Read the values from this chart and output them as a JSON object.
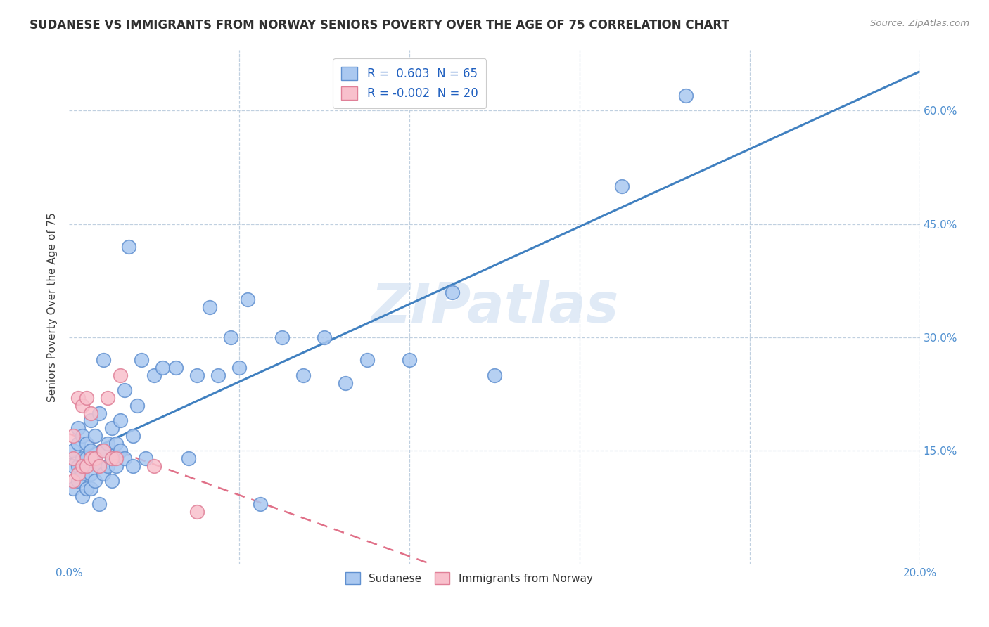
{
  "title": "SUDANESE VS IMMIGRANTS FROM NORWAY SENIORS POVERTY OVER THE AGE OF 75 CORRELATION CHART",
  "source": "Source: ZipAtlas.com",
  "ylabel": "Seniors Poverty Over the Age of 75",
  "xlim": [
    0.0,
    0.2
  ],
  "ylim": [
    0.0,
    0.68
  ],
  "legend_blue_label": "R =  0.603  N = 65",
  "legend_pink_label": "R = -0.002  N = 20",
  "blue_color": "#aac8f0",
  "blue_edge_color": "#6090d0",
  "pink_color": "#f8c0cc",
  "pink_edge_color": "#e08098",
  "line_blue_color": "#4080c0",
  "line_pink_color": "#e07088",
  "watermark": "ZIPatlas",
  "background_color": "#ffffff",
  "grid_color": "#c0d0e0",
  "title_color": "#303030",
  "axis_label_color": "#5090d0",
  "sudanese_x": [
    0.001,
    0.001,
    0.001,
    0.002,
    0.002,
    0.002,
    0.002,
    0.003,
    0.003,
    0.003,
    0.003,
    0.004,
    0.004,
    0.004,
    0.005,
    0.005,
    0.005,
    0.005,
    0.006,
    0.006,
    0.006,
    0.007,
    0.007,
    0.007,
    0.008,
    0.008,
    0.008,
    0.009,
    0.009,
    0.01,
    0.01,
    0.01,
    0.011,
    0.011,
    0.012,
    0.012,
    0.013,
    0.013,
    0.014,
    0.015,
    0.015,
    0.016,
    0.017,
    0.018,
    0.02,
    0.022,
    0.025,
    0.028,
    0.03,
    0.033,
    0.035,
    0.038,
    0.04,
    0.042,
    0.045,
    0.05,
    0.055,
    0.06,
    0.065,
    0.07,
    0.08,
    0.09,
    0.1,
    0.13,
    0.145
  ],
  "sudanese_y": [
    0.1,
    0.13,
    0.15,
    0.11,
    0.13,
    0.16,
    0.18,
    0.09,
    0.12,
    0.14,
    0.17,
    0.1,
    0.14,
    0.16,
    0.1,
    0.12,
    0.15,
    0.19,
    0.11,
    0.14,
    0.17,
    0.08,
    0.13,
    0.2,
    0.12,
    0.15,
    0.27,
    0.13,
    0.16,
    0.11,
    0.14,
    0.18,
    0.13,
    0.16,
    0.15,
    0.19,
    0.14,
    0.23,
    0.42,
    0.13,
    0.17,
    0.21,
    0.27,
    0.14,
    0.25,
    0.26,
    0.26,
    0.14,
    0.25,
    0.34,
    0.25,
    0.3,
    0.26,
    0.35,
    0.08,
    0.3,
    0.25,
    0.3,
    0.24,
    0.27,
    0.27,
    0.36,
    0.25,
    0.5,
    0.62
  ],
  "norway_x": [
    0.001,
    0.001,
    0.001,
    0.002,
    0.002,
    0.003,
    0.003,
    0.004,
    0.004,
    0.005,
    0.005,
    0.006,
    0.007,
    0.008,
    0.009,
    0.01,
    0.011,
    0.012,
    0.02,
    0.03
  ],
  "norway_y": [
    0.11,
    0.14,
    0.17,
    0.12,
    0.22,
    0.13,
    0.21,
    0.13,
    0.22,
    0.14,
    0.2,
    0.14,
    0.13,
    0.15,
    0.22,
    0.14,
    0.14,
    0.25,
    0.13,
    0.07
  ]
}
